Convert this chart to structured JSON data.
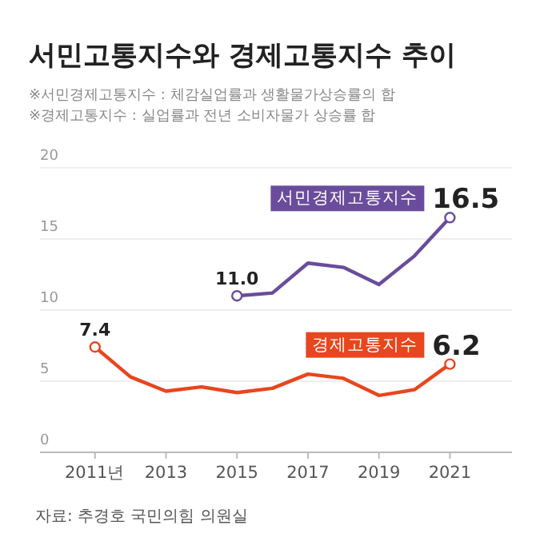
{
  "chart_data": {
    "type": "line",
    "title": "서민고통지수와 경제고통지수 추이",
    "subtitle": "※서민경제고통지수 : 체감실업률과 생활물가상승률의 합",
    "annotations": [
      "※경제고통지수 : 실업률과 전년 소비자물가 상승률 합",
      "자료: 추경호 국민의힘 의원실"
    ],
    "xlim": [
      2009.45,
      2022.75
    ],
    "xticks": [
      {
        "value": 2011,
        "label": "2011년"
      },
      2013,
      2015,
      2017,
      2019,
      2021
    ],
    "ylim": [
      0,
      20
    ],
    "yticks": [
      0,
      5,
      10,
      15,
      20
    ],
    "grid": "y",
    "line_style": "solid",
    "series": [
      {
        "name": "서민경제고통지수",
        "color": "#6a4c9c",
        "x": [
          2015,
          2016,
          2017,
          2018,
          2019,
          2020,
          2021
        ],
        "values": [
          11.0,
          11.2,
          13.3,
          13.0,
          11.8,
          13.8,
          16.5
        ],
        "value_labels": [
          "11.0",
          null,
          null,
          null,
          null,
          null,
          "16.5"
        ]
      },
      {
        "name": "경제고통지수",
        "color": "#e8461e",
        "x": [
          2011,
          2012,
          2013,
          2014,
          2015,
          2016,
          2017,
          2018,
          2019,
          2020,
          2021
        ],
        "values": [
          7.4,
          5.3,
          4.3,
          4.6,
          4.2,
          4.5,
          5.5,
          5.2,
          4.0,
          4.4,
          6.2
        ],
        "value_labels": [
          "7.4",
          null,
          null,
          null,
          null,
          null,
          null,
          null,
          null,
          null,
          "6.2"
        ]
      }
    ]
  }
}
